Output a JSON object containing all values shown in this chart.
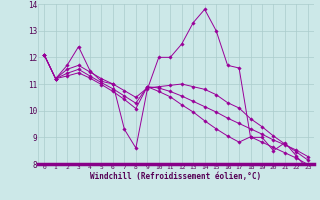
{
  "xlabel": "Windchill (Refroidissement éolien,°C)",
  "ylabel": "",
  "xlim": [
    -0.5,
    23.5
  ],
  "ylim": [
    8,
    14
  ],
  "yticks": [
    8,
    9,
    10,
    11,
    12,
    13,
    14
  ],
  "xticks": [
    0,
    1,
    2,
    3,
    4,
    5,
    6,
    7,
    8,
    9,
    10,
    11,
    12,
    13,
    14,
    15,
    16,
    17,
    18,
    19,
    20,
    21,
    22,
    23
  ],
  "bg_color": "#cce8e8",
  "line_color": "#990099",
  "grid_color": "#aacccc",
  "series": [
    [
      12.1,
      11.2,
      11.7,
      12.4,
      11.5,
      11.1,
      11.0,
      9.3,
      8.6,
      10.8,
      12.0,
      12.0,
      12.5,
      13.3,
      13.8,
      13.0,
      11.7,
      11.6,
      9.0,
      9.0,
      8.5,
      8.8,
      8.3,
      7.8
    ],
    [
      12.1,
      11.2,
      11.55,
      11.7,
      11.45,
      11.2,
      11.0,
      10.75,
      10.5,
      10.85,
      10.9,
      10.95,
      11.0,
      10.9,
      10.8,
      10.6,
      10.3,
      10.1,
      9.7,
      9.4,
      9.05,
      8.75,
      8.45,
      8.15
    ],
    [
      12.1,
      11.2,
      11.4,
      11.55,
      11.3,
      11.05,
      10.82,
      10.55,
      10.28,
      10.9,
      10.85,
      10.72,
      10.55,
      10.35,
      10.15,
      9.95,
      9.72,
      9.52,
      9.32,
      9.12,
      8.9,
      8.72,
      8.52,
      8.28
    ],
    [
      12.1,
      11.2,
      11.3,
      11.42,
      11.22,
      10.98,
      10.72,
      10.42,
      10.08,
      10.9,
      10.72,
      10.52,
      10.22,
      9.95,
      9.62,
      9.32,
      9.05,
      8.82,
      9.02,
      8.82,
      8.62,
      8.42,
      8.22,
      7.98
    ]
  ]
}
